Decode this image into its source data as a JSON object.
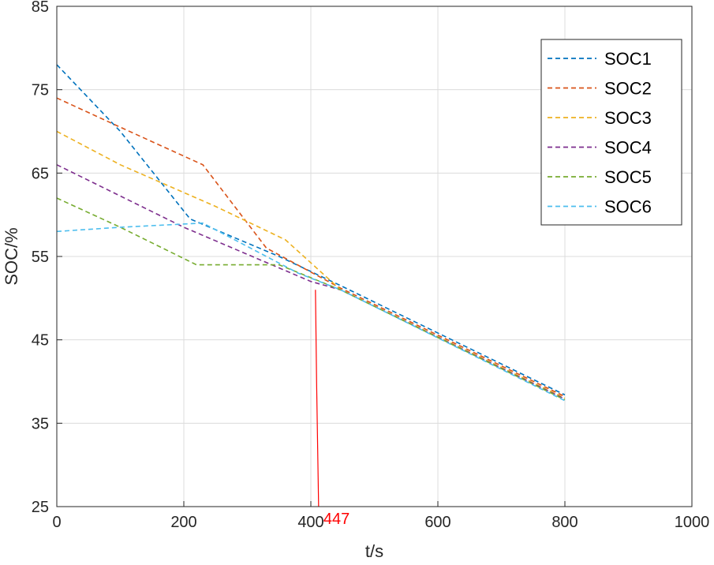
{
  "chart_data": {
    "type": "line",
    "title": "",
    "xlabel": "t/s",
    "ylabel": "SOC/%",
    "xlim": [
      0,
      1000
    ],
    "ylim": [
      25,
      85
    ],
    "xticks": [
      0,
      200,
      400,
      600,
      800,
      1000
    ],
    "yticks": [
      25,
      35,
      45,
      55,
      65,
      75,
      85
    ],
    "grid": true,
    "legend": {
      "placement": "top-right"
    },
    "series": [
      {
        "name": "SOC1",
        "color": "#0072BD",
        "style": "dashed",
        "x": [
          0,
          100,
          210,
          350,
          447,
          800
        ],
        "y": [
          78,
          70,
          59.5,
          55,
          51.5,
          38.4
        ]
      },
      {
        "name": "SOC2",
        "color": "#D95319",
        "style": "dashed",
        "x": [
          0,
          100,
          230,
          330,
          447,
          800
        ],
        "y": [
          74,
          70.5,
          66,
          56,
          51.2,
          38.2
        ]
      },
      {
        "name": "SOC3",
        "color": "#EDB120",
        "style": "dashed",
        "x": [
          0,
          100,
          250,
          360,
          447,
          800
        ],
        "y": [
          70,
          66,
          61,
          57,
          51,
          38.0
        ]
      },
      {
        "name": "SOC4",
        "color": "#7E2F8E",
        "style": "dashed",
        "x": [
          0,
          200,
          400,
          447,
          800
        ],
        "y": [
          66,
          58.5,
          52,
          51,
          37.9
        ]
      },
      {
        "name": "SOC5",
        "color": "#77AC30",
        "style": "dashed",
        "x": [
          0,
          100,
          220,
          250,
          350,
          447,
          800
        ],
        "y": [
          62,
          58.5,
          54,
          54,
          54,
          51,
          37.8
        ]
      },
      {
        "name": "SOC6",
        "color": "#4DBEEE",
        "style": "dashed",
        "x": [
          0,
          100,
          230,
          380,
          447,
          800
        ],
        "y": [
          58,
          58.5,
          59,
          53,
          51,
          37.7
        ]
      }
    ],
    "annotations": [
      {
        "label": "447",
        "color": "#FF0000",
        "x": 447,
        "y_from": 51,
        "y_to": 25
      }
    ]
  }
}
